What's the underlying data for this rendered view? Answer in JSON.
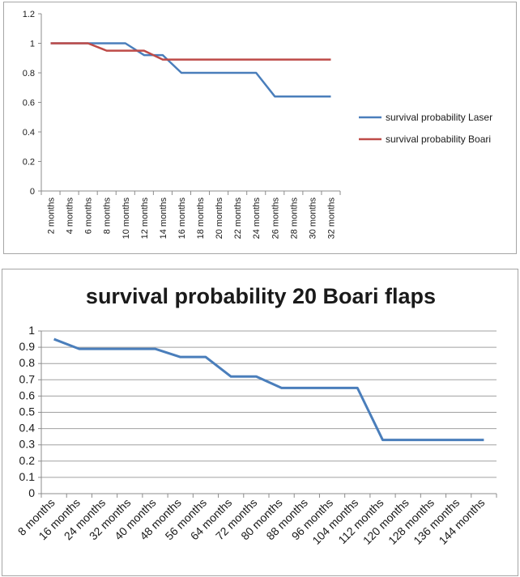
{
  "chart_data": [
    {
      "type": "line",
      "title": "",
      "xlabel": "",
      "ylabel": "",
      "categories": [
        "2 months",
        "4 months",
        "6 months",
        "8 months",
        "10 months",
        "12 months",
        "14 months",
        "16 months",
        "18 months",
        "20 months",
        "22 months",
        "24 months",
        "26 months",
        "28 months",
        "30 months",
        "32 months"
      ],
      "series": [
        {
          "name": "survival probability Laser",
          "color": "#4a7ebb",
          "values": [
            1,
            1,
            1,
            1,
            1,
            0.92,
            0.92,
            0.8,
            0.8,
            0.8,
            0.8,
            0.8,
            0.64,
            0.64,
            0.64,
            0.64
          ]
        },
        {
          "name": "survival probability Boari",
          "color": "#be4b48",
          "values": [
            1,
            1,
            1,
            0.95,
            0.95,
            0.95,
            0.89,
            0.89,
            0.89,
            0.89,
            0.89,
            0.89,
            0.89,
            0.89,
            0.89,
            0.89
          ]
        }
      ],
      "ylim": [
        0,
        1.2
      ],
      "yticks": [
        "0",
        "0.2",
        "0.4",
        "0.6",
        "0.8",
        "1",
        "1.2"
      ],
      "ytick_values": [
        0,
        0.2,
        0.4,
        0.6,
        0.8,
        1,
        1.2
      ],
      "grid": false,
      "legend": "right"
    },
    {
      "type": "line",
      "title": "survival probability 20 Boari flaps",
      "xlabel": "",
      "ylabel": "",
      "categories": [
        "8 months",
        "16 months",
        "24 months",
        "32 months",
        "40 months",
        "48 months",
        "56 months",
        "64 months",
        "72 months",
        "80 months",
        "88 months",
        "96 months",
        "104 months",
        "112 months",
        "120 months",
        "128 months",
        "136 months",
        "144 months"
      ],
      "series": [
        {
          "color": "#4a7ebb",
          "values": [
            0.95,
            0.89,
            0.89,
            0.89,
            0.89,
            0.84,
            0.84,
            0.72,
            0.72,
            0.65,
            0.65,
            0.65,
            0.65,
            0.33,
            0.33,
            0.33,
            0.33,
            0.33
          ]
        }
      ],
      "ylim": [
        0,
        1
      ],
      "yticks": [
        "0",
        "0.1",
        "0.2",
        "0.3",
        "0.4",
        "0.5",
        "0.6",
        "0.7",
        "0.8",
        "0.9",
        "1"
      ],
      "ytick_values": [
        0,
        0.1,
        0.2,
        0.3,
        0.4,
        0.5,
        0.6,
        0.7,
        0.8,
        0.9,
        1
      ],
      "grid": true,
      "legend": "none"
    }
  ]
}
